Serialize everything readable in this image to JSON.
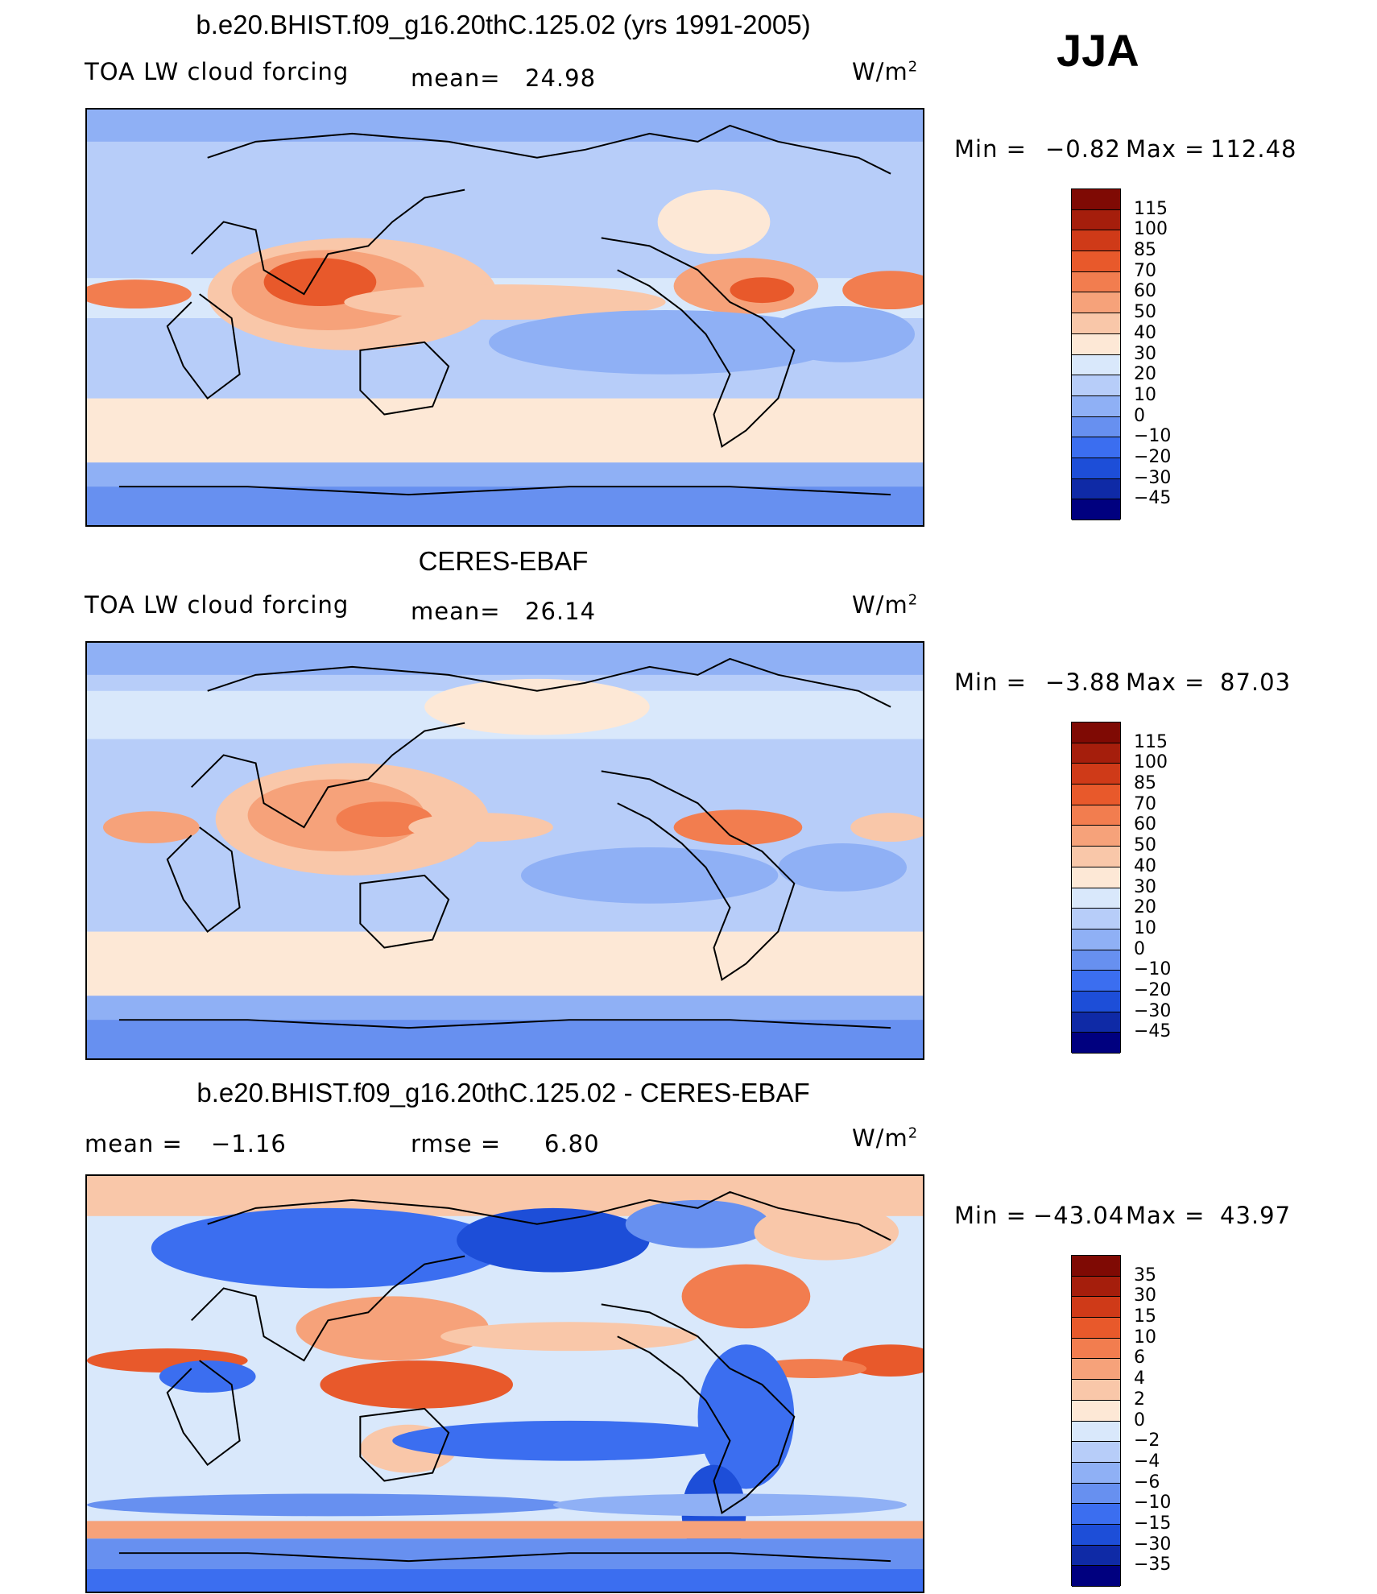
{
  "season": "JJA",
  "palette_main": [
    "#00007f",
    "#0f2aa6",
    "#1d4ed8",
    "#3b6ef0",
    "#6790f0",
    "#8fb0f5",
    "#b7cdf9",
    "#d9e8fb",
    "#fde8d6",
    "#f9c7a9",
    "#f6a27a",
    "#f27d4f",
    "#e8592b",
    "#cf3a18",
    "#a51e0c",
    "#7f0a04"
  ],
  "palette_diff": [
    "#00007f",
    "#0f2aa6",
    "#1d4ed8",
    "#3b6ef0",
    "#6790f0",
    "#8fb0f5",
    "#b7cdf9",
    "#d9e8fb",
    "#fde8d6",
    "#f9c7a9",
    "#f6a27a",
    "#f27d4f",
    "#e8592b",
    "#cf3a18",
    "#a51e0c",
    "#7f0a04"
  ],
  "panels": [
    {
      "title": "b.e20.BHIST.f09_g16.20thC.125.02 (yrs 1991-2005)",
      "left": "TOA LW cloud forcing",
      "mean_label": "mean=",
      "mean_value": "24.98",
      "units": "W/m",
      "units_sup": "2",
      "min_label": "Min =",
      "min_value": "−0.82",
      "max_label": "Max =",
      "max_value": "112.48",
      "levels": [
        "115",
        "100",
        "85",
        "70",
        "60",
        "50",
        "40",
        "30",
        "20",
        "10",
        "0",
        "−10",
        "−20",
        "−30",
        "−45"
      ]
    },
    {
      "title": "CERES-EBAF",
      "left": "TOA LW cloud forcing",
      "mean_label": "mean=",
      "mean_value": "26.14",
      "units": "W/m",
      "units_sup": "2",
      "min_label": "Min =",
      "min_value": "−3.88",
      "max_label": "Max =",
      "max_value": "87.03",
      "levels": [
        "115",
        "100",
        "85",
        "70",
        "60",
        "50",
        "40",
        "30",
        "20",
        "10",
        "0",
        "−10",
        "−20",
        "−30",
        "−45"
      ]
    },
    {
      "title": "b.e20.BHIST.f09_g16.20thC.125.02 - CERES-EBAF",
      "left_label": "mean =",
      "left_value": "−1.16",
      "mean_label": "rmse =",
      "mean_value": "6.80",
      "units": "W/m",
      "units_sup": "2",
      "min_label": "Min =",
      "min_value": "−43.04",
      "max_label": "Max =",
      "max_value": "43.97",
      "levels": [
        "35",
        "30",
        "15",
        "10",
        "6",
        "4",
        "2",
        "0",
        "−2",
        "−4",
        "−6",
        "−10",
        "−15",
        "−30",
        "−35"
      ]
    }
  ]
}
